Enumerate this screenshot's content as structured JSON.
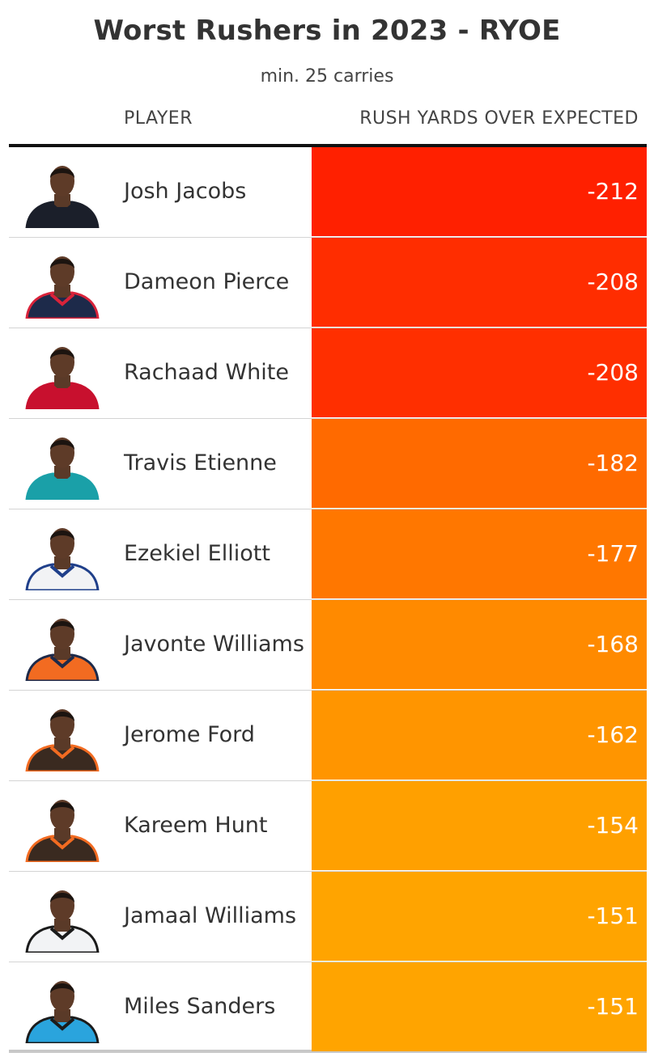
{
  "header": {
    "title": "Worst Rushers in 2023 - RYOE",
    "subtitle": "min. 25 carries",
    "col_player": "PLAYER",
    "col_value": "RUSH YARDS OVER EXPECTED"
  },
  "chart_data": {
    "type": "table",
    "title": "Worst Rushers in 2023 - RYOE",
    "subtitle": "min. 25 carries",
    "columns": [
      "PLAYER",
      "RUSH YARDS OVER EXPECTED"
    ],
    "rows": [
      {
        "player": "Josh Jacobs",
        "value": "-212",
        "color": "#ff2000",
        "jersey": "#1b1f2a",
        "trim": "#1b1f2a"
      },
      {
        "player": "Dameon Pierce",
        "value": "-208",
        "color": "#ff2d00",
        "jersey": "#1d2a4a",
        "trim": "#d9233a"
      },
      {
        "player": "Rachaad White",
        "value": "-208",
        "color": "#ff2f00",
        "jersey": "#c8102e",
        "trim": "#c8102e"
      },
      {
        "player": "Travis Etienne",
        "value": "-182",
        "color": "#ff6a00",
        "jersey": "#1aa0a8",
        "trim": "#1aa0a8"
      },
      {
        "player": "Ezekiel Elliott",
        "value": "-177",
        "color": "#ff7700",
        "jersey": "#f2f3f5",
        "trim": "#1f3f8a"
      },
      {
        "player": "Javonte Williams",
        "value": "-168",
        "color": "#ff8a00",
        "jersey": "#f26b21",
        "trim": "#1d2a4a"
      },
      {
        "player": "Jerome Ford",
        "value": "-162",
        "color": "#ff9500",
        "jersey": "#3a2a20",
        "trim": "#f26b21"
      },
      {
        "player": "Kareem Hunt",
        "value": "-154",
        "color": "#ffa000",
        "jersey": "#3a2a20",
        "trim": "#f26b21"
      },
      {
        "player": "Jamaal Williams",
        "value": "-151",
        "color": "#ffa400",
        "jersey": "#f2f3f5",
        "trim": "#1b1b1b"
      },
      {
        "player": "Miles Sanders",
        "value": "-151",
        "color": "#ffa400",
        "jersey": "#2aa4dd",
        "trim": "#1b1b1b"
      }
    ]
  }
}
